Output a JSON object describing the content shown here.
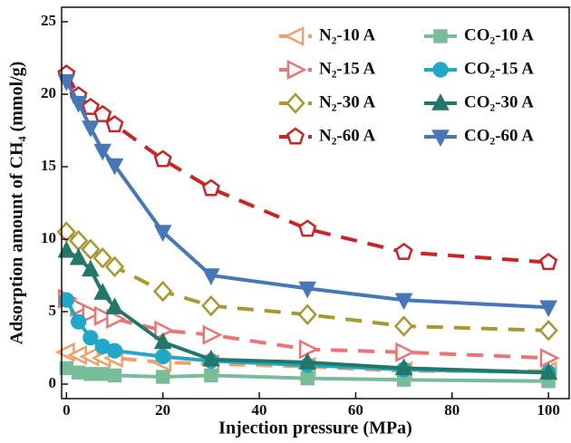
{
  "chart_data": {
    "type": "line",
    "xlabel": "Injection pressure (MPa)",
    "ylabel": "Adsorption amount of CH₄ (mmol/g)",
    "x": [
      0,
      2.5,
      5,
      7.5,
      10,
      20,
      30,
      50,
      70,
      100
    ],
    "xlim": [
      -1,
      104.3
    ],
    "ylim": [
      -1,
      26
    ],
    "xticks": [
      0,
      20,
      40,
      60,
      80,
      100
    ],
    "yticks": [
      0,
      5,
      10,
      15,
      20,
      25
    ],
    "legend": "upper right",
    "series": [
      {
        "name": "N₂-10 A",
        "color": "#f0a066",
        "marker": "triangle-left",
        "dashed": true,
        "values": [
          2.2,
          2.0,
          1.9,
          1.8,
          1.8,
          1.5,
          1.4,
          1.2,
          0.9,
          0.9
        ]
      },
      {
        "name": "N₂-15 A",
        "color": "#ee7474",
        "marker": "triangle-right",
        "dashed": true,
        "values": [
          5.9,
          5.3,
          4.9,
          4.7,
          4.5,
          3.7,
          3.4,
          2.4,
          2.2,
          1.8
        ]
      },
      {
        "name": "N₂-30 A",
        "color": "#a8982e",
        "marker": "diamond",
        "dashed": true,
        "values": [
          10.5,
          9.9,
          9.3,
          8.7,
          8.1,
          6.4,
          5.4,
          4.8,
          4.0,
          3.7
        ]
      },
      {
        "name": "N₂-60 A",
        "color": "#cc2424",
        "marker": "pentagon",
        "dashed": true,
        "values": [
          21.4,
          19.9,
          19.1,
          18.6,
          17.9,
          15.5,
          13.5,
          10.7,
          9.1,
          8.4
        ]
      },
      {
        "name": "CO₂-10 A",
        "color": "#78bc9a",
        "marker": "square",
        "dashed": false,
        "values": [
          1.1,
          0.8,
          0.7,
          0.7,
          0.6,
          0.5,
          0.6,
          0.4,
          0.3,
          0.2
        ]
      },
      {
        "name": "CO₂-15 A",
        "color": "#1fa8c8",
        "marker": "circle",
        "dashed": false,
        "values": [
          5.8,
          4.3,
          3.2,
          2.6,
          2.3,
          1.9,
          1.6,
          1.3,
          1.0,
          0.8
        ]
      },
      {
        "name": "CO₂-30 A",
        "color": "#227868",
        "marker": "triangle-up",
        "dashed": false,
        "values": [
          9.2,
          8.7,
          7.9,
          6.3,
          5.3,
          2.9,
          1.7,
          1.5,
          1.1,
          0.8
        ]
      },
      {
        "name": "CO₂-60 A",
        "color": "#4677b8",
        "marker": "triangle-down",
        "dashed": false,
        "values": [
          20.9,
          19.4,
          17.7,
          16.1,
          15.1,
          10.5,
          7.5,
          6.6,
          5.8,
          5.3
        ]
      }
    ]
  }
}
